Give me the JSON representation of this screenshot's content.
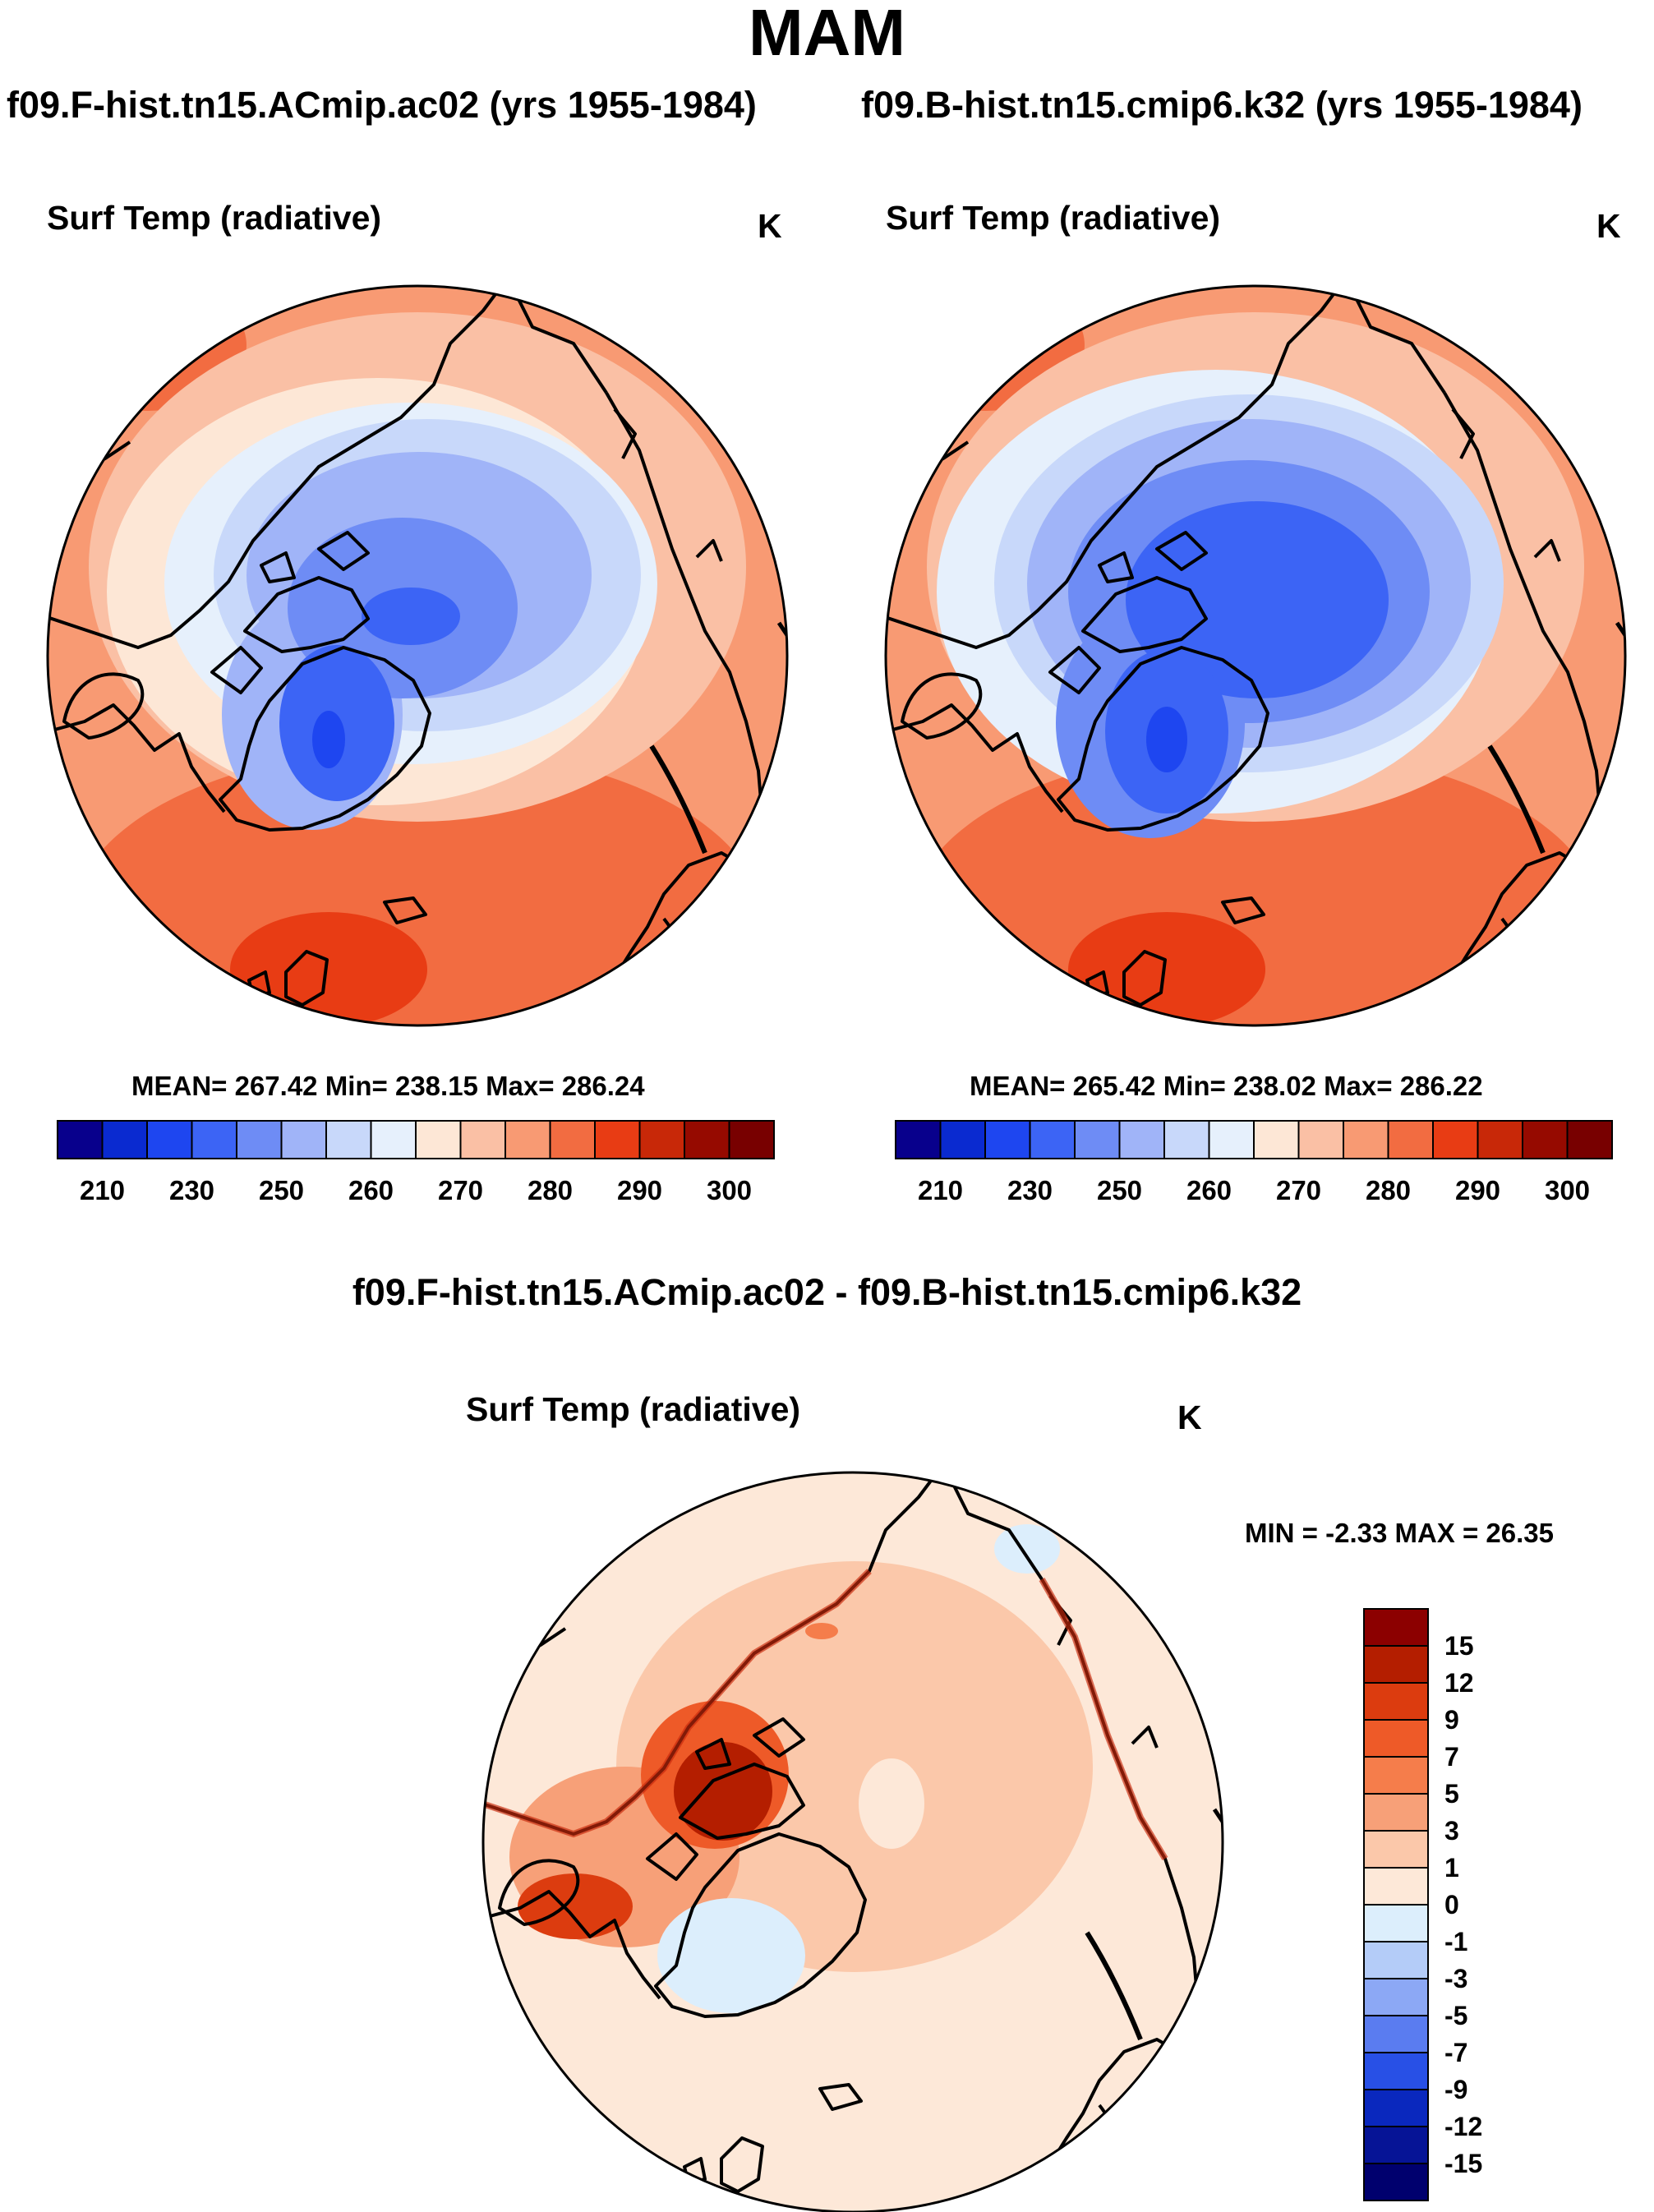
{
  "figure": {
    "title": "MAM",
    "diff_title": "f09.F-hist.tn15.ACmip.ac02 - f09.B-hist.tn15.cmip6.k32",
    "map_type": "North polar stereographic projection with coastlines"
  },
  "panels": [
    {
      "run_title": "f09.F-hist.tn15.ACmip.ac02 (yrs 1955-1984)",
      "variable": "Surf Temp (radiative)",
      "units": "K",
      "stats": "MEAN= 267.42  Min= 238.15  Max= 286.24"
    },
    {
      "run_title": "f09.B-hist.tn15.cmip6.k32 (yrs 1955-1984)",
      "variable": "Surf Temp (radiative)",
      "units": "K",
      "stats": "MEAN= 265.42  Min= 238.02  Max= 286.22"
    },
    {
      "variable": "Surf Temp (radiative)",
      "units": "K",
      "stats": "MIN =  -2.33 MAX =  26.35"
    }
  ],
  "abs_colorbar": {
    "labels": [
      "210",
      "230",
      "250",
      "260",
      "270",
      "280",
      "290",
      "300"
    ],
    "colors": [
      "#08008c",
      "#0a2ad0",
      "#1e46f0",
      "#3c64f5",
      "#6e8cf5",
      "#a0b4f8",
      "#c8d8fa",
      "#e6f0fc",
      "#fde7d6",
      "#fac0a5",
      "#f89a73",
      "#f26c41",
      "#e83c14",
      "#c82808",
      "#960a00",
      "#780000"
    ]
  },
  "diff_colorbar": {
    "labels": [
      "15",
      "12",
      "9",
      "7",
      "5",
      "3",
      "1",
      "0",
      "-1",
      "-3",
      "-5",
      "-7",
      "-9",
      "-12",
      "-15"
    ],
    "colors": [
      "#8c0000",
      "#b41e00",
      "#dc3c0f",
      "#ee5a28",
      "#f57d4b",
      "#f7a078",
      "#fbc8aa",
      "#fde8d8",
      "#dceefc",
      "#b4ccf8",
      "#8ca8f5",
      "#5a7cf0",
      "#2850e6",
      "#0a28be",
      "#061496",
      "#00006e"
    ]
  }
}
